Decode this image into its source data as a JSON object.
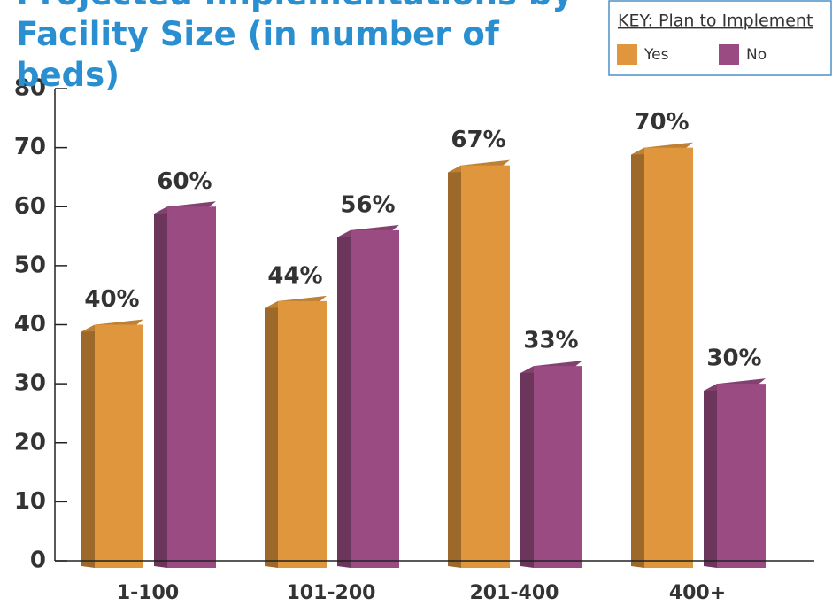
{
  "chart_data": {
    "type": "bar3d",
    "title": "Projected Implementations by Facility Size (in number of beds)",
    "legend_title": "KEY: Plan to Implement",
    "categories": [
      "1-100",
      "101-200",
      "201-400",
      "400+"
    ],
    "series": [
      {
        "name": "Yes",
        "color": "#e0963c",
        "values": [
          40,
          44,
          67,
          70
        ],
        "value_labels": [
          "40%",
          "44%",
          "67%",
          "70%"
        ]
      },
      {
        "name": "No",
        "color": "#9a4c82",
        "values": [
          60,
          56,
          33,
          30
        ],
        "value_labels": [
          "60%",
          "56%",
          "33%",
          "30%"
        ]
      }
    ],
    "ylim": [
      0,
      80
    ],
    "yticks": [
      0,
      10,
      20,
      30,
      40,
      50,
      60,
      70,
      80
    ],
    "legend": "upper right"
  }
}
